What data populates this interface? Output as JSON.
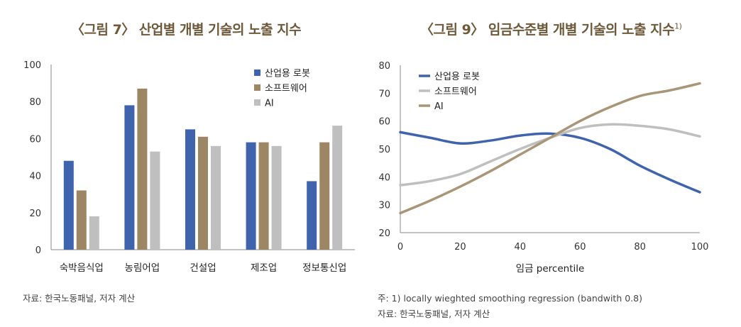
{
  "left": {
    "title": "〈그림 7〉 산업별 개별 기술의 노출 지수",
    "source": "자료: 한국노동패널, 저자 계산"
  },
  "right": {
    "title": "〈그림 9〉 임금수준별 개별 기술의 노출 지수",
    "title_sup": "1)",
    "footnote": "주: 1) locally wieghted smoothing regression (bandwith 0.8)",
    "source": "자료: 한국노동패널, 저자 계산"
  },
  "colors": {
    "robot": "#3f63ad",
    "software": "#9c8663",
    "ai": "#bfbfbf",
    "title": "#6e5a3a"
  },
  "chart_data": [
    {
      "type": "bar",
      "title": "〈그림 7〉 산업별 개별 기술의 노출 지수",
      "categories": [
        "숙박음식업",
        "농림어업",
        "건설업",
        "제조업",
        "정보통신업"
      ],
      "series": [
        {
          "name": "산업용 로봇",
          "color": "#3f63ad",
          "values": [
            48,
            78,
            65,
            58,
            37
          ]
        },
        {
          "name": "소프트웨어",
          "color": "#9c8663",
          "values": [
            32,
            87,
            61,
            58,
            58
          ]
        },
        {
          "name": "AI",
          "color": "#bfbfbf",
          "values": [
            18,
            53,
            56,
            56,
            67
          ]
        }
      ],
      "ylim": [
        0,
        100
      ],
      "yticks": [
        0,
        20,
        40,
        60,
        80,
        100
      ],
      "xlabel": "",
      "ylabel": "",
      "legend": "top-right"
    },
    {
      "type": "line",
      "title": "〈그림 9〉 임금수준별 개별 기술의 노출 지수",
      "x": [
        0,
        10,
        20,
        30,
        40,
        50,
        60,
        70,
        80,
        90,
        100
      ],
      "series": [
        {
          "name": "산업용 로봇",
          "color": "#3f63ad",
          "values": [
            56,
            54,
            52,
            53,
            54.8,
            55.5,
            54,
            50,
            44,
            39,
            34.5
          ]
        },
        {
          "name": "소프트웨어",
          "color": "#bfbfbf",
          "values": [
            37,
            38.5,
            41,
            45.5,
            50,
            54,
            57.5,
            58.8,
            58.3,
            57,
            54.5
          ]
        },
        {
          "name": "AI",
          "color": "#a89677",
          "values": [
            27,
            31.5,
            36.5,
            42,
            48,
            54,
            60,
            65,
            69,
            71,
            73.5
          ]
        }
      ],
      "xlim": [
        0,
        100
      ],
      "ylim": [
        20,
        80
      ],
      "xticks": [
        0,
        20,
        40,
        60,
        80,
        100
      ],
      "yticks": [
        20,
        30,
        40,
        50,
        60,
        70,
        80
      ],
      "xlabel": "임금 percentile",
      "ylabel": "",
      "legend": "top-left"
    }
  ]
}
